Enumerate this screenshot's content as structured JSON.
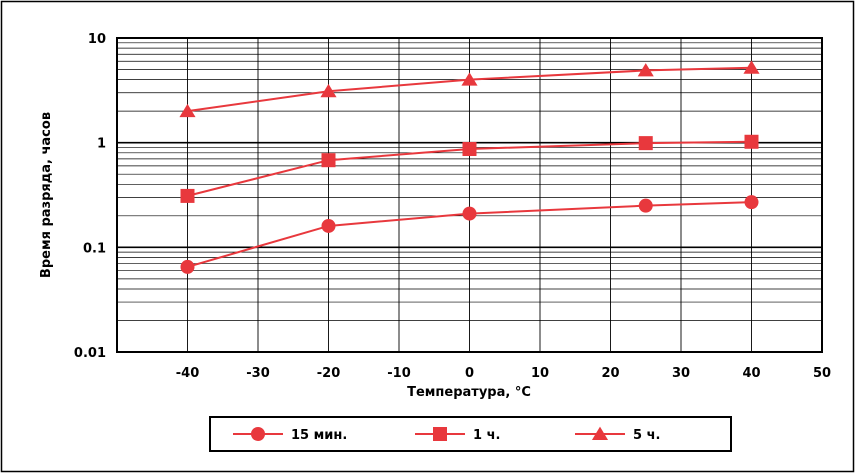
{
  "chart_data": {
    "type": "line",
    "title": "",
    "xlabel": "Температура, °C",
    "ylabel": "Время разряда, часов",
    "x_ticks": [
      "-40",
      "-30",
      "-20",
      "-10",
      "0",
      "10",
      "20",
      "30",
      "40",
      "50"
    ],
    "y_ticks": [
      "0.01",
      "0.1",
      "1",
      "10"
    ],
    "xlim": [
      -50,
      50
    ],
    "ylim": [
      0.01,
      10
    ],
    "y_scale": "log",
    "grid": true,
    "legend_position": "bottom",
    "series_color": "#e8383d",
    "series": [
      {
        "name": "15 мин.",
        "marker": "circle",
        "x": [
          -40,
          -20,
          0,
          25,
          40
        ],
        "y": [
          0.065,
          0.16,
          0.21,
          0.25,
          0.27
        ]
      },
      {
        "name": "1 ч.",
        "marker": "square",
        "x": [
          -40,
          -20,
          0,
          25,
          40
        ],
        "y": [
          0.31,
          0.68,
          0.87,
          0.99,
          1.02
        ]
      },
      {
        "name": "5 ч.",
        "marker": "triangle",
        "x": [
          -40,
          -20,
          0,
          25,
          40
        ],
        "y": [
          2.0,
          3.1,
          4.0,
          4.9,
          5.2
        ]
      }
    ]
  }
}
